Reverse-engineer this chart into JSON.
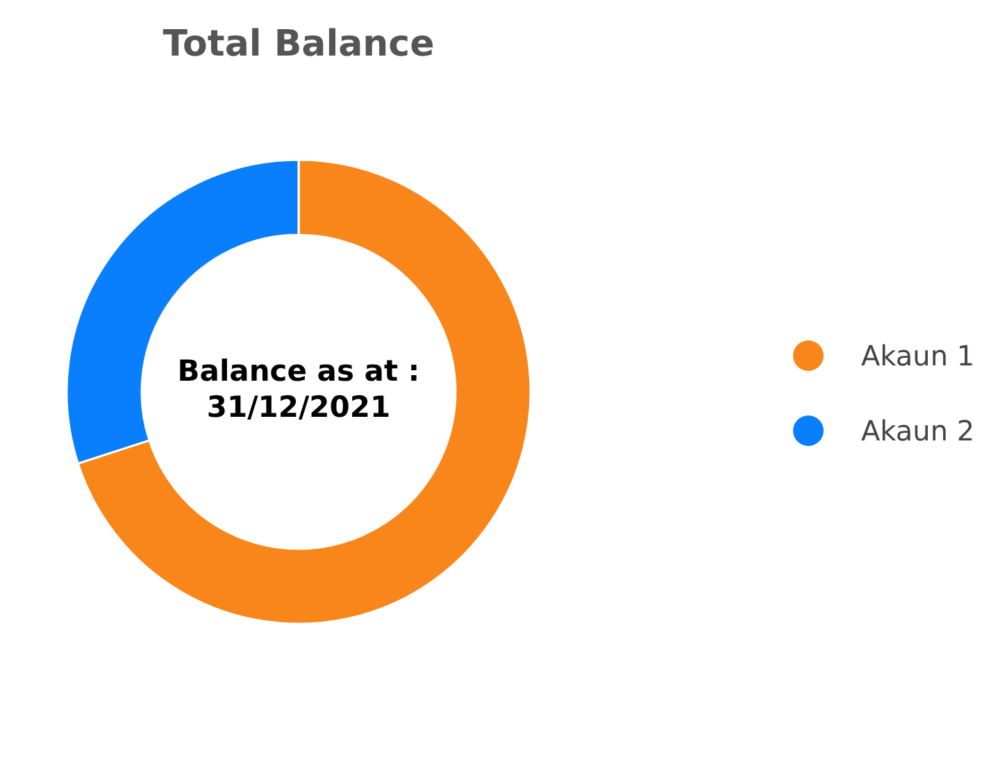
{
  "chart_data": {
    "type": "donut",
    "title": "Total Balance",
    "categories": [
      "Akaun 1",
      "Akaun 2"
    ],
    "values": [
      70,
      30
    ],
    "colors": [
      "#f9861a",
      "#0a7ffd"
    ],
    "annotations": [
      "Balance as at :\n31/12/2021"
    ],
    "legend": "right"
  }
}
